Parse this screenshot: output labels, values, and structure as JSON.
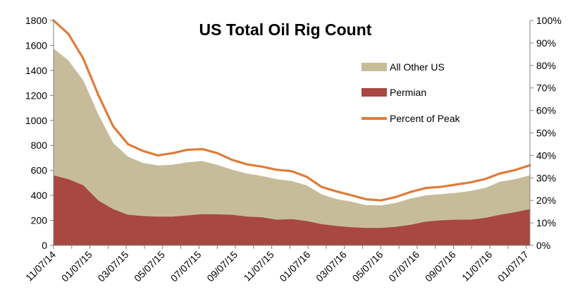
{
  "chart_data": {
    "type": "area",
    "title": "US Total Oil Rig Count",
    "xlabel": "",
    "ylabel": "",
    "ylim": [
      0,
      1800
    ],
    "y_ticks": [
      0,
      200,
      400,
      600,
      800,
      1000,
      1200,
      1400,
      1600,
      1800
    ],
    "y2lim": [
      0,
      100
    ],
    "y2_ticks": [
      "0%",
      "10%",
      "20%",
      "30%",
      "40%",
      "50%",
      "60%",
      "70%",
      "80%",
      "90%",
      "100%"
    ],
    "x_tick_labels": [
      "11/07/14",
      "01/07/15",
      "03/07/15",
      "05/07/15",
      "07/07/15",
      "09/07/15",
      "11/07/15",
      "01/07/16",
      "03/07/16",
      "05/07/16",
      "07/07/16",
      "09/07/16",
      "11/07/16",
      "01/07/17"
    ],
    "legend_position": "center-right",
    "series": [
      {
        "name": "Permian",
        "type": "area",
        "color": "#A84840",
        "x": [
          0,
          1,
          2,
          3,
          4,
          5,
          6,
          7,
          8,
          9,
          10,
          11,
          12,
          13,
          14,
          15,
          16,
          17,
          18,
          19,
          20,
          21,
          22,
          23,
          24,
          25,
          26,
          27,
          28,
          29,
          30,
          31,
          32
        ],
        "values": [
          560,
          530,
          480,
          360,
          290,
          245,
          235,
          230,
          230,
          240,
          250,
          248,
          245,
          230,
          225,
          205,
          210,
          195,
          170,
          155,
          145,
          140,
          140,
          148,
          165,
          190,
          200,
          205,
          205,
          220,
          245,
          265,
          290
        ]
      },
      {
        "name": "All Other US",
        "type": "area",
        "color": "#C7BC99",
        "x": [
          0,
          1,
          2,
          3,
          4,
          5,
          6,
          7,
          8,
          9,
          10,
          11,
          12,
          13,
          14,
          15,
          16,
          17,
          18,
          19,
          20,
          21,
          22,
          23,
          24,
          25,
          26,
          27,
          28,
          29,
          30,
          31,
          32
        ],
        "values": [
          1575,
          1480,
          1320,
          1050,
          820,
          710,
          660,
          640,
          645,
          665,
          675,
          645,
          605,
          575,
          555,
          530,
          515,
          480,
          410,
          370,
          350,
          322,
          320,
          340,
          375,
          400,
          410,
          420,
          435,
          460,
          510,
          530,
          560
        ]
      },
      {
        "name": "Percent of Peak",
        "type": "line",
        "axis": "right",
        "color": "#E07B39",
        "x": [
          0,
          1,
          2,
          3,
          4,
          5,
          6,
          7,
          8,
          9,
          10,
          11,
          12,
          13,
          14,
          15,
          16,
          17,
          18,
          19,
          20,
          21,
          22,
          23,
          24,
          25,
          26,
          27,
          28,
          29,
          30,
          31,
          32
        ],
        "values": [
          100,
          94,
          83,
          67,
          53,
          45,
          42,
          40,
          41,
          42.5,
          42.8,
          41,
          38,
          36,
          35,
          33.6,
          33,
          30.5,
          26,
          24,
          22.3,
          20.5,
          20,
          21.5,
          23.8,
          25.5,
          26,
          27,
          28,
          29.5,
          32,
          33.5,
          35.6
        ]
      }
    ]
  }
}
